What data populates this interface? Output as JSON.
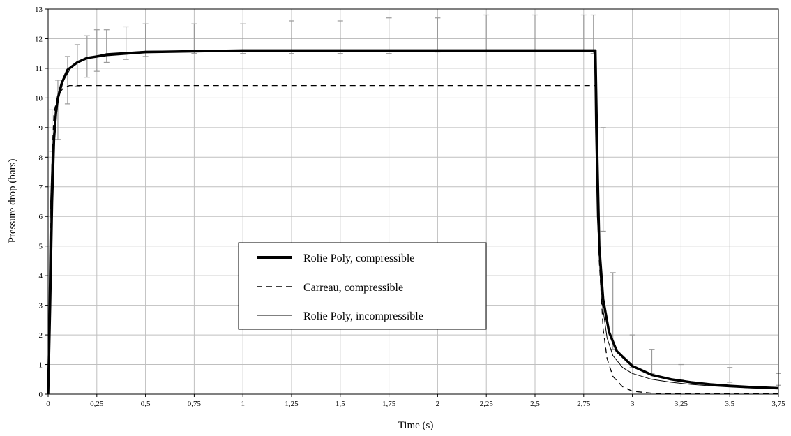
{
  "chart_data": {
    "type": "line",
    "title": "",
    "xlabel": "Time (s)",
    "ylabel": "Pressure drop (bars)",
    "xlim": [
      0,
      3.75
    ],
    "ylim": [
      0,
      13
    ],
    "grid": true,
    "legend_position": "center",
    "x_ticks": [
      "0",
      "0,25",
      "0,5",
      "0,75",
      "1",
      "1,25",
      "1,5",
      "1,75",
      "2",
      "2,25",
      "2,5",
      "2,75",
      "3",
      "3,25",
      "3,5",
      "3,75"
    ],
    "y_ticks": [
      "0",
      "1",
      "2",
      "3",
      "4",
      "5",
      "6",
      "7",
      "8",
      "9",
      "10",
      "11",
      "12",
      "13"
    ],
    "series": [
      {
        "name": "Rolie Poly, compressible",
        "style": "thick-solid",
        "color": "#000000",
        "x": [
          0,
          0.01,
          0.02,
          0.03,
          0.04,
          0.05,
          0.07,
          0.1,
          0.15,
          0.2,
          0.3,
          0.5,
          1.0,
          2.0,
          2.8,
          2.81,
          2.82,
          2.83,
          2.85,
          2.88,
          2.92,
          3.0,
          3.1,
          3.2,
          3.3,
          3.4,
          3.5,
          3.6,
          3.75
        ],
        "y": [
          0,
          3.0,
          6.5,
          8.6,
          9.5,
          10.0,
          10.5,
          10.95,
          11.2,
          11.35,
          11.45,
          11.55,
          11.6,
          11.6,
          11.6,
          11.6,
          8.0,
          5.0,
          3.2,
          2.1,
          1.45,
          0.95,
          0.65,
          0.5,
          0.4,
          0.33,
          0.28,
          0.24,
          0.2
        ]
      },
      {
        "name": "Carreau, compressible",
        "style": "dashed",
        "color": "#000000",
        "x": [
          0,
          0.01,
          0.02,
          0.03,
          0.05,
          0.08,
          0.11,
          0.15,
          0.5,
          1.0,
          2.0,
          2.8,
          2.81,
          2.82,
          2.83,
          2.85,
          2.87,
          2.9,
          2.95,
          3.0,
          3.1,
          3.2,
          3.3,
          3.75
        ],
        "y": [
          0,
          4.5,
          8.0,
          9.5,
          10.1,
          10.35,
          10.42,
          10.42,
          10.42,
          10.42,
          10.42,
          10.42,
          10.42,
          7.5,
          4.5,
          2.2,
          1.2,
          0.6,
          0.25,
          0.1,
          0.03,
          0.02,
          0.02,
          0.02
        ]
      },
      {
        "name": "Rolie Poly, incompressible",
        "style": "thin-solid",
        "color": "#000000",
        "x": [
          0,
          0.005,
          0.01,
          0.02,
          0.03,
          0.05,
          0.08,
          0.12,
          0.2,
          0.3,
          0.5,
          1.0,
          2.0,
          2.8,
          2.805,
          2.81,
          2.82,
          2.84,
          2.87,
          2.9,
          2.95,
          3.0,
          3.1,
          3.2,
          3.3,
          3.4,
          3.5,
          3.6,
          3.75
        ],
        "y": [
          0,
          3.5,
          6.0,
          8.0,
          9.0,
          9.9,
          10.6,
          11.05,
          11.35,
          11.5,
          11.58,
          11.6,
          11.6,
          11.6,
          11.6,
          9.0,
          6.0,
          3.3,
          1.9,
          1.3,
          0.9,
          0.7,
          0.5,
          0.4,
          0.33,
          0.28,
          0.24,
          0.21,
          0.18
        ]
      },
      {
        "name": "",
        "style": "error-bars",
        "color": "#9a9a9a",
        "x": [
          0.02,
          0.05,
          0.1,
          0.15,
          0.2,
          0.25,
          0.3,
          0.4,
          0.5,
          0.75,
          1.0,
          1.25,
          1.5,
          1.75,
          2.0,
          2.25,
          2.5,
          2.75,
          2.8,
          2.85,
          2.9,
          3.0,
          3.1,
          3.25,
          3.5,
          3.75
        ],
        "y_low": [
          8.2,
          8.6,
          9.8,
          10.4,
          10.7,
          10.9,
          11.2,
          11.3,
          11.4,
          11.5,
          11.5,
          11.5,
          11.5,
          11.5,
          11.55,
          11.6,
          11.6,
          11.6,
          11.5,
          5.5,
          1.5,
          0.9,
          0.7,
          0.5,
          0.4,
          0.3
        ],
        "y_high": [
          9.6,
          10.6,
          11.4,
          11.8,
          12.1,
          12.3,
          12.3,
          12.4,
          12.5,
          12.5,
          12.5,
          12.6,
          12.6,
          12.7,
          12.7,
          12.8,
          12.8,
          12.8,
          12.8,
          9.0,
          4.1,
          2.0,
          1.5,
          1.0,
          0.9,
          0.7
        ]
      }
    ],
    "legend": {
      "items": [
        "Rolie Poly, compressible",
        "Carreau, compressible",
        "Rolie Poly, incompressible"
      ]
    }
  }
}
